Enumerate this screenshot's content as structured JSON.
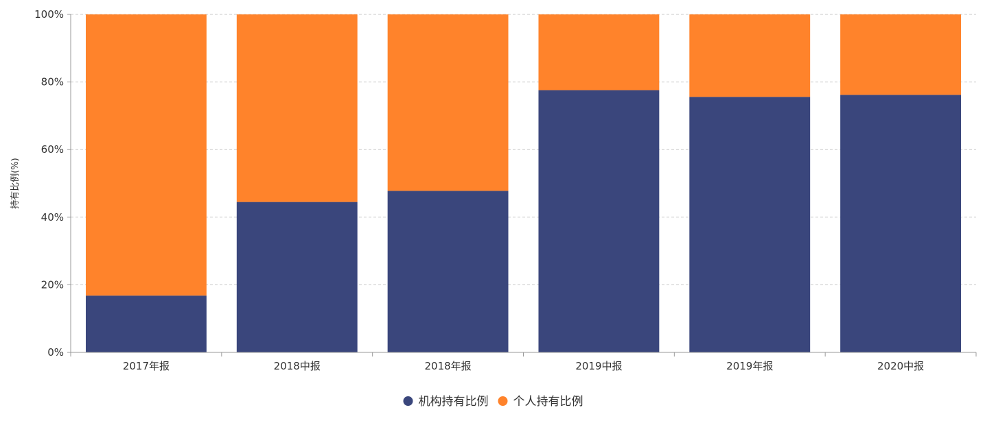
{
  "chart_data": {
    "type": "bar",
    "stacked": true,
    "title": "",
    "xlabel": "",
    "ylabel": "持有比例(%)",
    "ylim": [
      0,
      100
    ],
    "y_tick_values": [
      0,
      20,
      40,
      60,
      80,
      100
    ],
    "y_tick_labels": [
      "0%",
      "20%",
      "40%",
      "60%",
      "80%",
      "100%"
    ],
    "grid": true,
    "legend_position": "bottom",
    "categories": [
      "2017年报",
      "2018中报",
      "2018年报",
      "2019中报",
      "2019年报",
      "2020中报"
    ],
    "series": [
      {
        "name": "机构持有比例",
        "color": "#3a467c",
        "values": [
          16.8,
          44.5,
          47.8,
          77.6,
          75.6,
          76.2
        ]
      },
      {
        "name": "个人持有比例",
        "color": "#ff832b",
        "values": [
          83.2,
          55.5,
          52.2,
          22.4,
          24.4,
          23.8
        ]
      }
    ]
  }
}
